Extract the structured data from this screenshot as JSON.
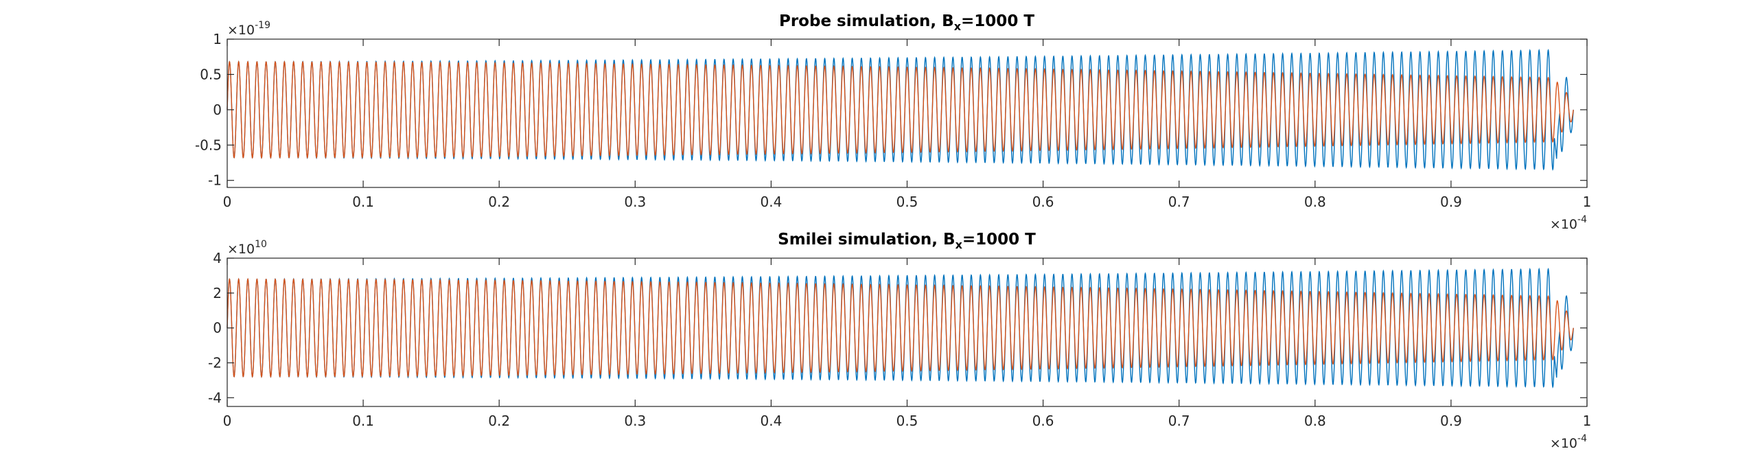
{
  "chart_data": [
    {
      "type": "line",
      "title": {
        "text": "Probe simulation, B",
        "sub": "x",
        "suffix": "=1000 T"
      },
      "xlim": [
        0,
        1
      ],
      "ylim": [
        -1.1,
        1
      ],
      "x_exponent_label": {
        "base": "×10",
        "exp": "-4"
      },
      "y_exponent_label": {
        "base": "×10",
        "exp": "-19"
      },
      "xticks": [
        "0",
        "0.1",
        "0.2",
        "0.3",
        "0.4",
        "0.5",
        "0.6",
        "0.7",
        "0.8",
        "0.9",
        "1"
      ],
      "yticks": [
        "-1",
        "-0.5",
        "0",
        "0.5",
        "1"
      ],
      "ytick_values": [
        -1,
        -0.5,
        0,
        0.5,
        1
      ],
      "grid": false,
      "series": [
        {
          "color": "#0072BD",
          "oscillations": 147,
          "x_end": 0.99,
          "amplitude_start": 0.68,
          "amplitude_end": 0.85,
          "final_dip": -0.93
        },
        {
          "color": "#D95319",
          "oscillations": 147,
          "x_end": 0.99,
          "amplitude_start": 0.68,
          "amplitude_end": 0.45
        }
      ]
    },
    {
      "type": "line",
      "title": {
        "text": "Smilei simulation, B",
        "sub": "x",
        "suffix": "=1000 T"
      },
      "xlim": [
        0,
        1
      ],
      "ylim": [
        -4.5,
        4
      ],
      "x_exponent_label": {
        "base": "×10",
        "exp": "-4"
      },
      "y_exponent_label": {
        "base": "×10",
        "exp": "10"
      },
      "xticks": [
        "0",
        "0.1",
        "0.2",
        "0.3",
        "0.4",
        "0.5",
        "0.6",
        "0.7",
        "0.8",
        "0.9",
        "1"
      ],
      "yticks": [
        "-4",
        "-2",
        "0",
        "2",
        "4"
      ],
      "ytick_values": [
        -4,
        -2,
        0,
        2,
        4
      ],
      "grid": false,
      "series": [
        {
          "color": "#0072BD",
          "oscillations": 147,
          "x_end": 0.99,
          "amplitude_start": 2.8,
          "amplitude_end": 3.4,
          "final_dip": -3.8
        },
        {
          "color": "#D95319",
          "oscillations": 147,
          "x_end": 0.99,
          "amplitude_start": 2.8,
          "amplitude_end": 1.8
        }
      ]
    }
  ]
}
